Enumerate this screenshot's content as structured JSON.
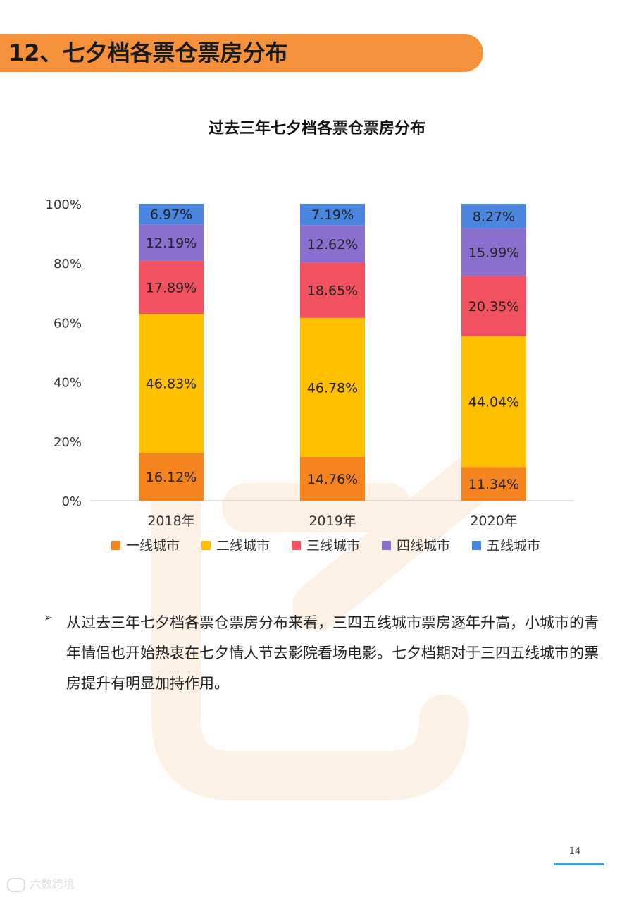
{
  "header": {
    "title": "12、七夕档各票仓票房分布"
  },
  "chart_data": {
    "type": "bar",
    "title": "过去三年七夕档各票仓票房分布",
    "categories": [
      "2018年",
      "2019年",
      "2020年"
    ],
    "y_ticks": [
      "0%",
      "20%",
      "40%",
      "60%",
      "80%",
      "100%"
    ],
    "ylim": [
      0,
      100
    ],
    "stacked": true,
    "legend_position": "bottom",
    "series": [
      {
        "name": "一线城市",
        "color": "#f5841f",
        "values": [
          16.12,
          14.76,
          11.34
        ],
        "labels": [
          "16.12%",
          "14.76%",
          "11.34%"
        ]
      },
      {
        "name": "二线城市",
        "color": "#ffc000",
        "values": [
          46.83,
          46.78,
          44.04
        ],
        "labels": [
          "46.83%",
          "46.78%",
          "44.04%"
        ]
      },
      {
        "name": "三线城市",
        "color": "#f2515f",
        "values": [
          17.89,
          18.65,
          20.35
        ],
        "labels": [
          "17.89%",
          "18.65%",
          "20.35%"
        ]
      },
      {
        "name": "四线城市",
        "color": "#8a6fcf",
        "values": [
          12.19,
          12.62,
          15.99
        ],
        "labels": [
          "12.19%",
          "12.62%",
          "15.99%"
        ]
      },
      {
        "name": "五线城市",
        "color": "#4a86e0",
        "values": [
          6.97,
          7.19,
          8.27
        ],
        "labels": [
          "6.97%",
          "7.19%",
          "8.27%"
        ]
      }
    ]
  },
  "summary": {
    "bullet": "➢",
    "text": "从过去三年七夕档各票仓票房分布来看，三四五线城市票房逐年升高，小城市的青年情侣也开始热衷在七夕情人节去影院看场电影。七夕档期对于三四五线城市的票房提升有明显加持作用。"
  },
  "footer": {
    "page_number": "14",
    "brand": "六数跨境"
  }
}
